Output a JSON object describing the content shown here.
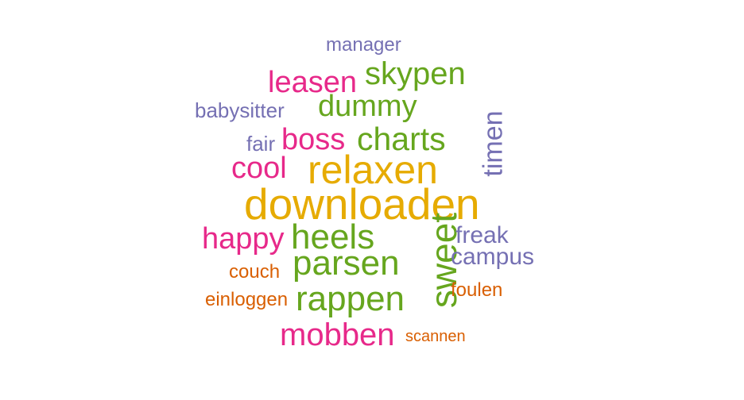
{
  "word_cloud": {
    "words": [
      {
        "text": "manager",
        "color": "#7570b3"
      },
      {
        "text": "skypen",
        "color": "#66a61e"
      },
      {
        "text": "leasen",
        "color": "#e7298a"
      },
      {
        "text": "babysitter",
        "color": "#7570b3"
      },
      {
        "text": "dummy",
        "color": "#66a61e"
      },
      {
        "text": "timen",
        "color": "#7570b3"
      },
      {
        "text": "fair",
        "color": "#7570b3"
      },
      {
        "text": "boss",
        "color": "#e7298a"
      },
      {
        "text": "charts",
        "color": "#66a61e"
      },
      {
        "text": "cool",
        "color": "#e7298a"
      },
      {
        "text": "relaxen",
        "color": "#e6ab02"
      },
      {
        "text": "downloaden",
        "color": "#e6ab02"
      },
      {
        "text": "happy",
        "color": "#e7298a"
      },
      {
        "text": "heels",
        "color": "#66a61e"
      },
      {
        "text": "sweet",
        "color": "#66a61e"
      },
      {
        "text": "freak",
        "color": "#7570b3"
      },
      {
        "text": "parsen",
        "color": "#66a61e"
      },
      {
        "text": "campus",
        "color": "#7570b3"
      },
      {
        "text": "couch",
        "color": "#d95f02"
      },
      {
        "text": "einloggen",
        "color": "#d95f02"
      },
      {
        "text": "rappen",
        "color": "#66a61e"
      },
      {
        "text": "foulen",
        "color": "#d95f02"
      },
      {
        "text": "mobben",
        "color": "#e7298a"
      },
      {
        "text": "scannen",
        "color": "#d95f02"
      }
    ]
  }
}
